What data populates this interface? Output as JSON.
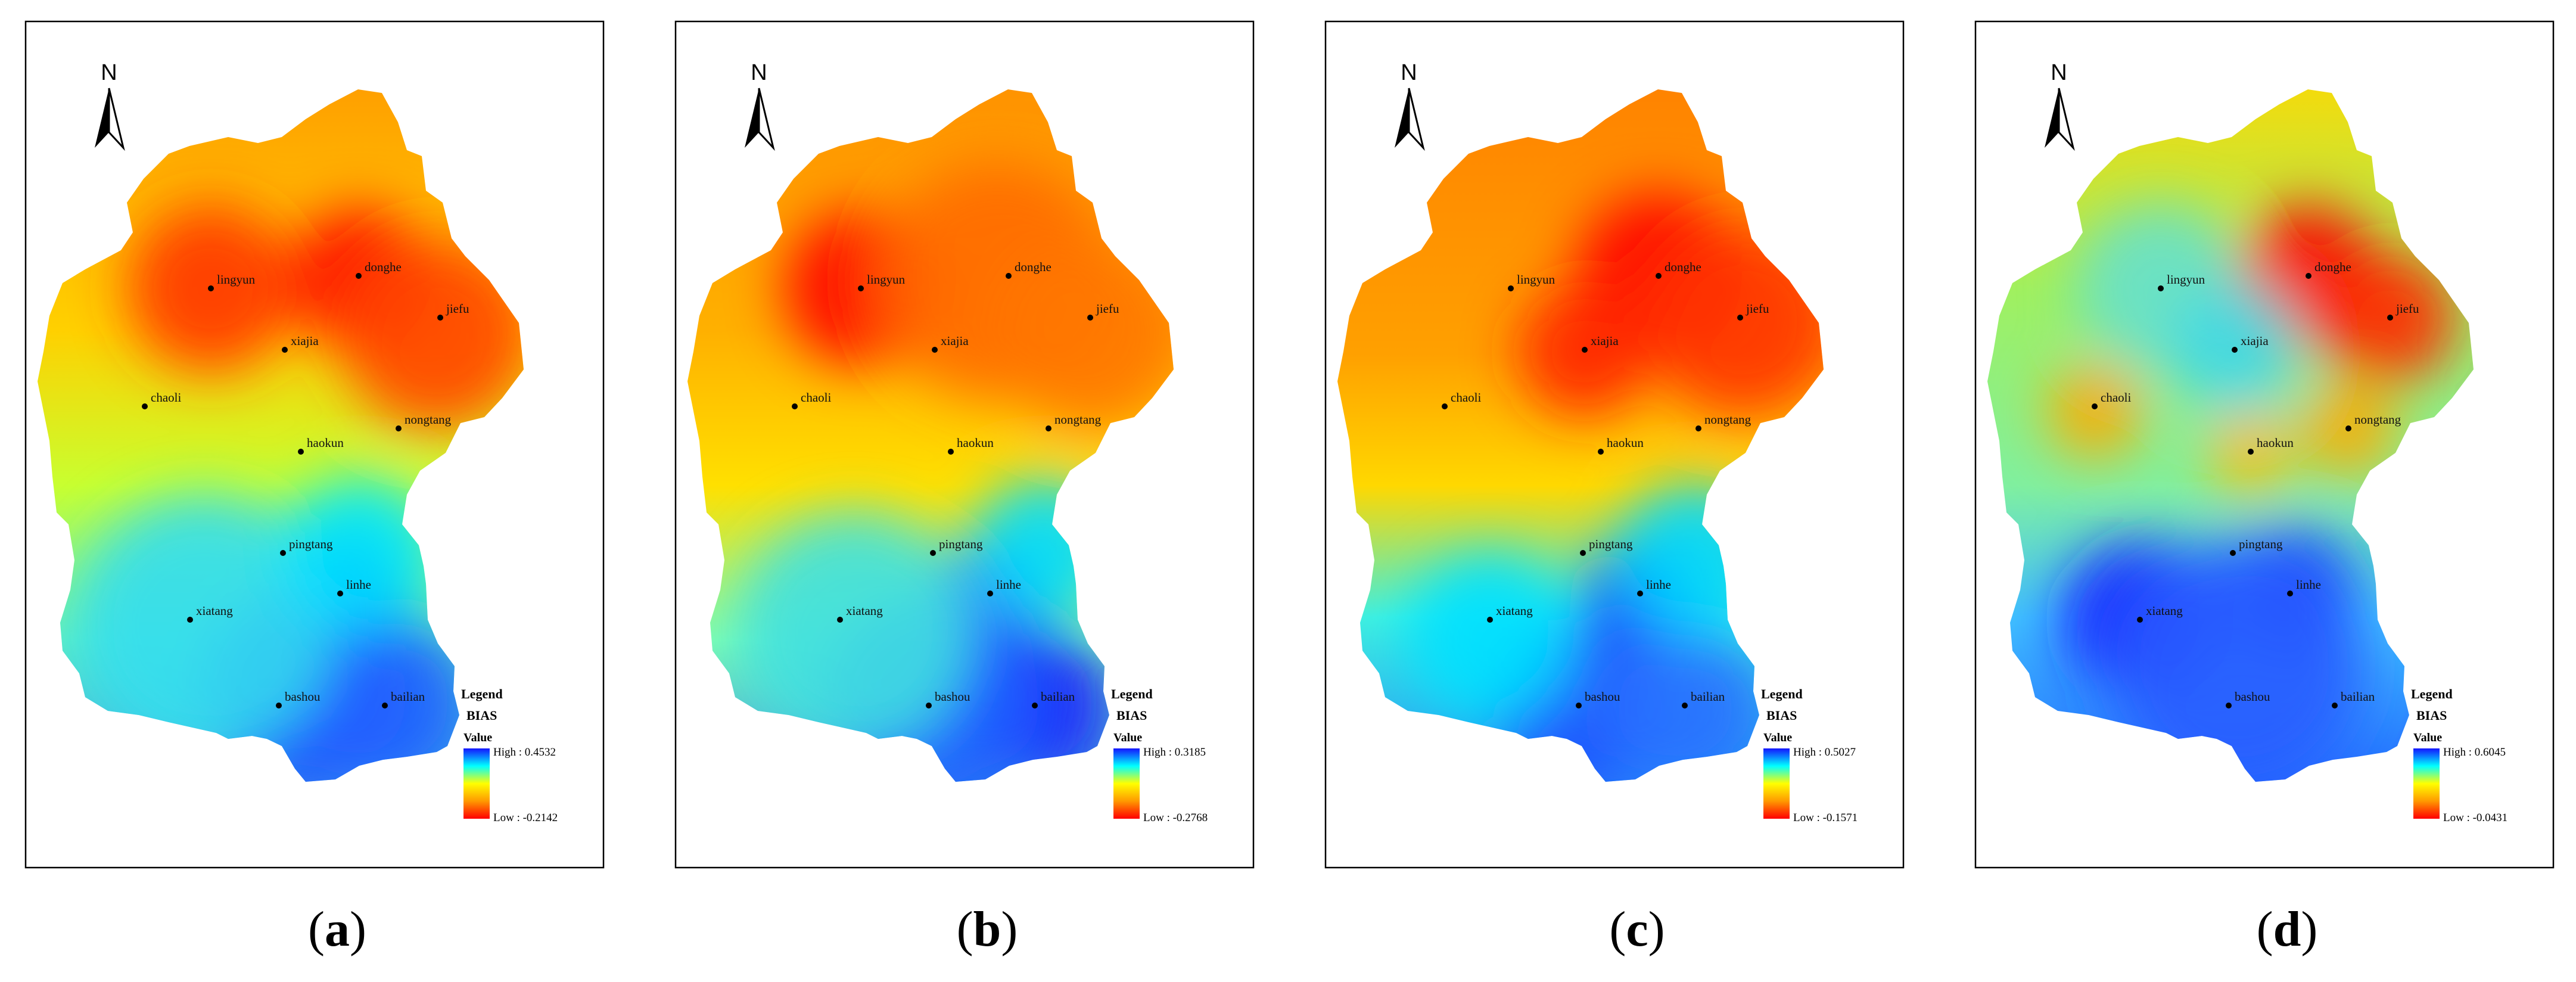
{
  "north_label": "N",
  "legend": {
    "title": "Legend",
    "field": "BIAS",
    "sublabel": "Value"
  },
  "stations": [
    "lingyun",
    "donghe",
    "jiefu",
    "xiajia",
    "chaoli",
    "nongtang",
    "haokun",
    "pingtang",
    "linhe",
    "xiatang",
    "bashou",
    "bailian"
  ],
  "panels": [
    {
      "id": "a",
      "caption": "a",
      "high": "High : 0.4532",
      "low": "Low : -0.2142"
    },
    {
      "id": "b",
      "caption": "b",
      "high": "High : 0.3185",
      "low": "Low : -0.2768"
    },
    {
      "id": "c",
      "caption": "c",
      "high": "High : 0.5027",
      "low": "Low : -0.1571"
    },
    {
      "id": "d",
      "caption": "d",
      "high": "High : 0.6045",
      "low": "Low : -0.0431"
    }
  ],
  "colors": {
    "ramp": [
      "#1414ff",
      "#00ffff",
      "#ffff00",
      "#ff9900",
      "#ff0000"
    ],
    "frame": "#000000"
  }
}
